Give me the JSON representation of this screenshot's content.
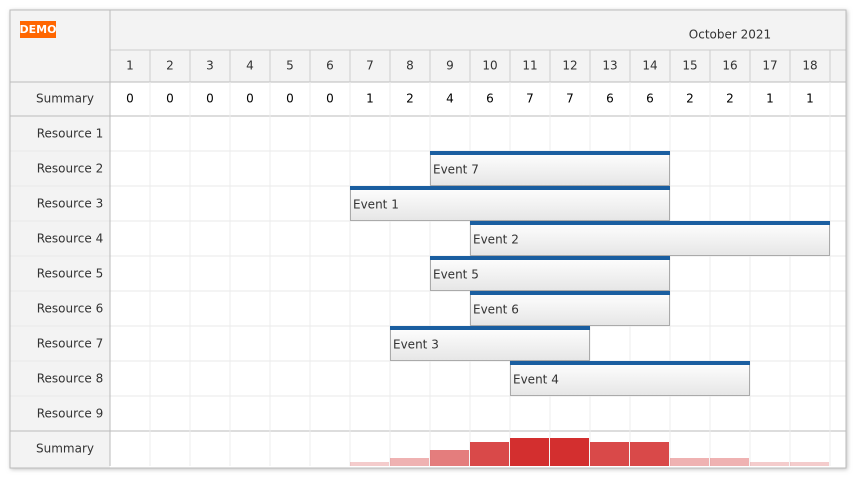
{
  "badge": "DEMO",
  "month": "October 2021",
  "days": [
    1,
    2,
    3,
    4,
    5,
    6,
    7,
    8,
    9,
    10,
    11,
    12,
    13,
    14,
    15,
    16,
    17,
    18
  ],
  "summary": {
    "label": "Summary",
    "values": [
      0,
      0,
      0,
      0,
      0,
      0,
      1,
      2,
      4,
      6,
      7,
      7,
      6,
      6,
      2,
      2,
      1,
      1
    ]
  },
  "resources": [
    {
      "name": "Resource 1",
      "events": []
    },
    {
      "name": "Resource 2",
      "events": [
        {
          "label": "Event 7",
          "start": 9,
          "end": 14
        }
      ]
    },
    {
      "name": "Resource 3",
      "events": [
        {
          "label": "Event 1",
          "start": 7,
          "end": 14
        }
      ]
    },
    {
      "name": "Resource 4",
      "events": [
        {
          "label": "Event 2",
          "start": 10,
          "end": 18
        }
      ]
    },
    {
      "name": "Resource 5",
      "events": [
        {
          "label": "Event 5",
          "start": 9,
          "end": 14
        }
      ]
    },
    {
      "name": "Resource 6",
      "events": [
        {
          "label": "Event 6",
          "start": 10,
          "end": 14
        }
      ]
    },
    {
      "name": "Resource 7",
      "events": [
        {
          "label": "Event 3",
          "start": 8,
          "end": 12
        }
      ]
    },
    {
      "name": "Resource 8",
      "events": [
        {
          "label": "Event 4",
          "start": 11,
          "end": 16
        }
      ]
    },
    {
      "name": "Resource 9",
      "events": []
    }
  ],
  "footer": {
    "label": "Summary"
  }
}
